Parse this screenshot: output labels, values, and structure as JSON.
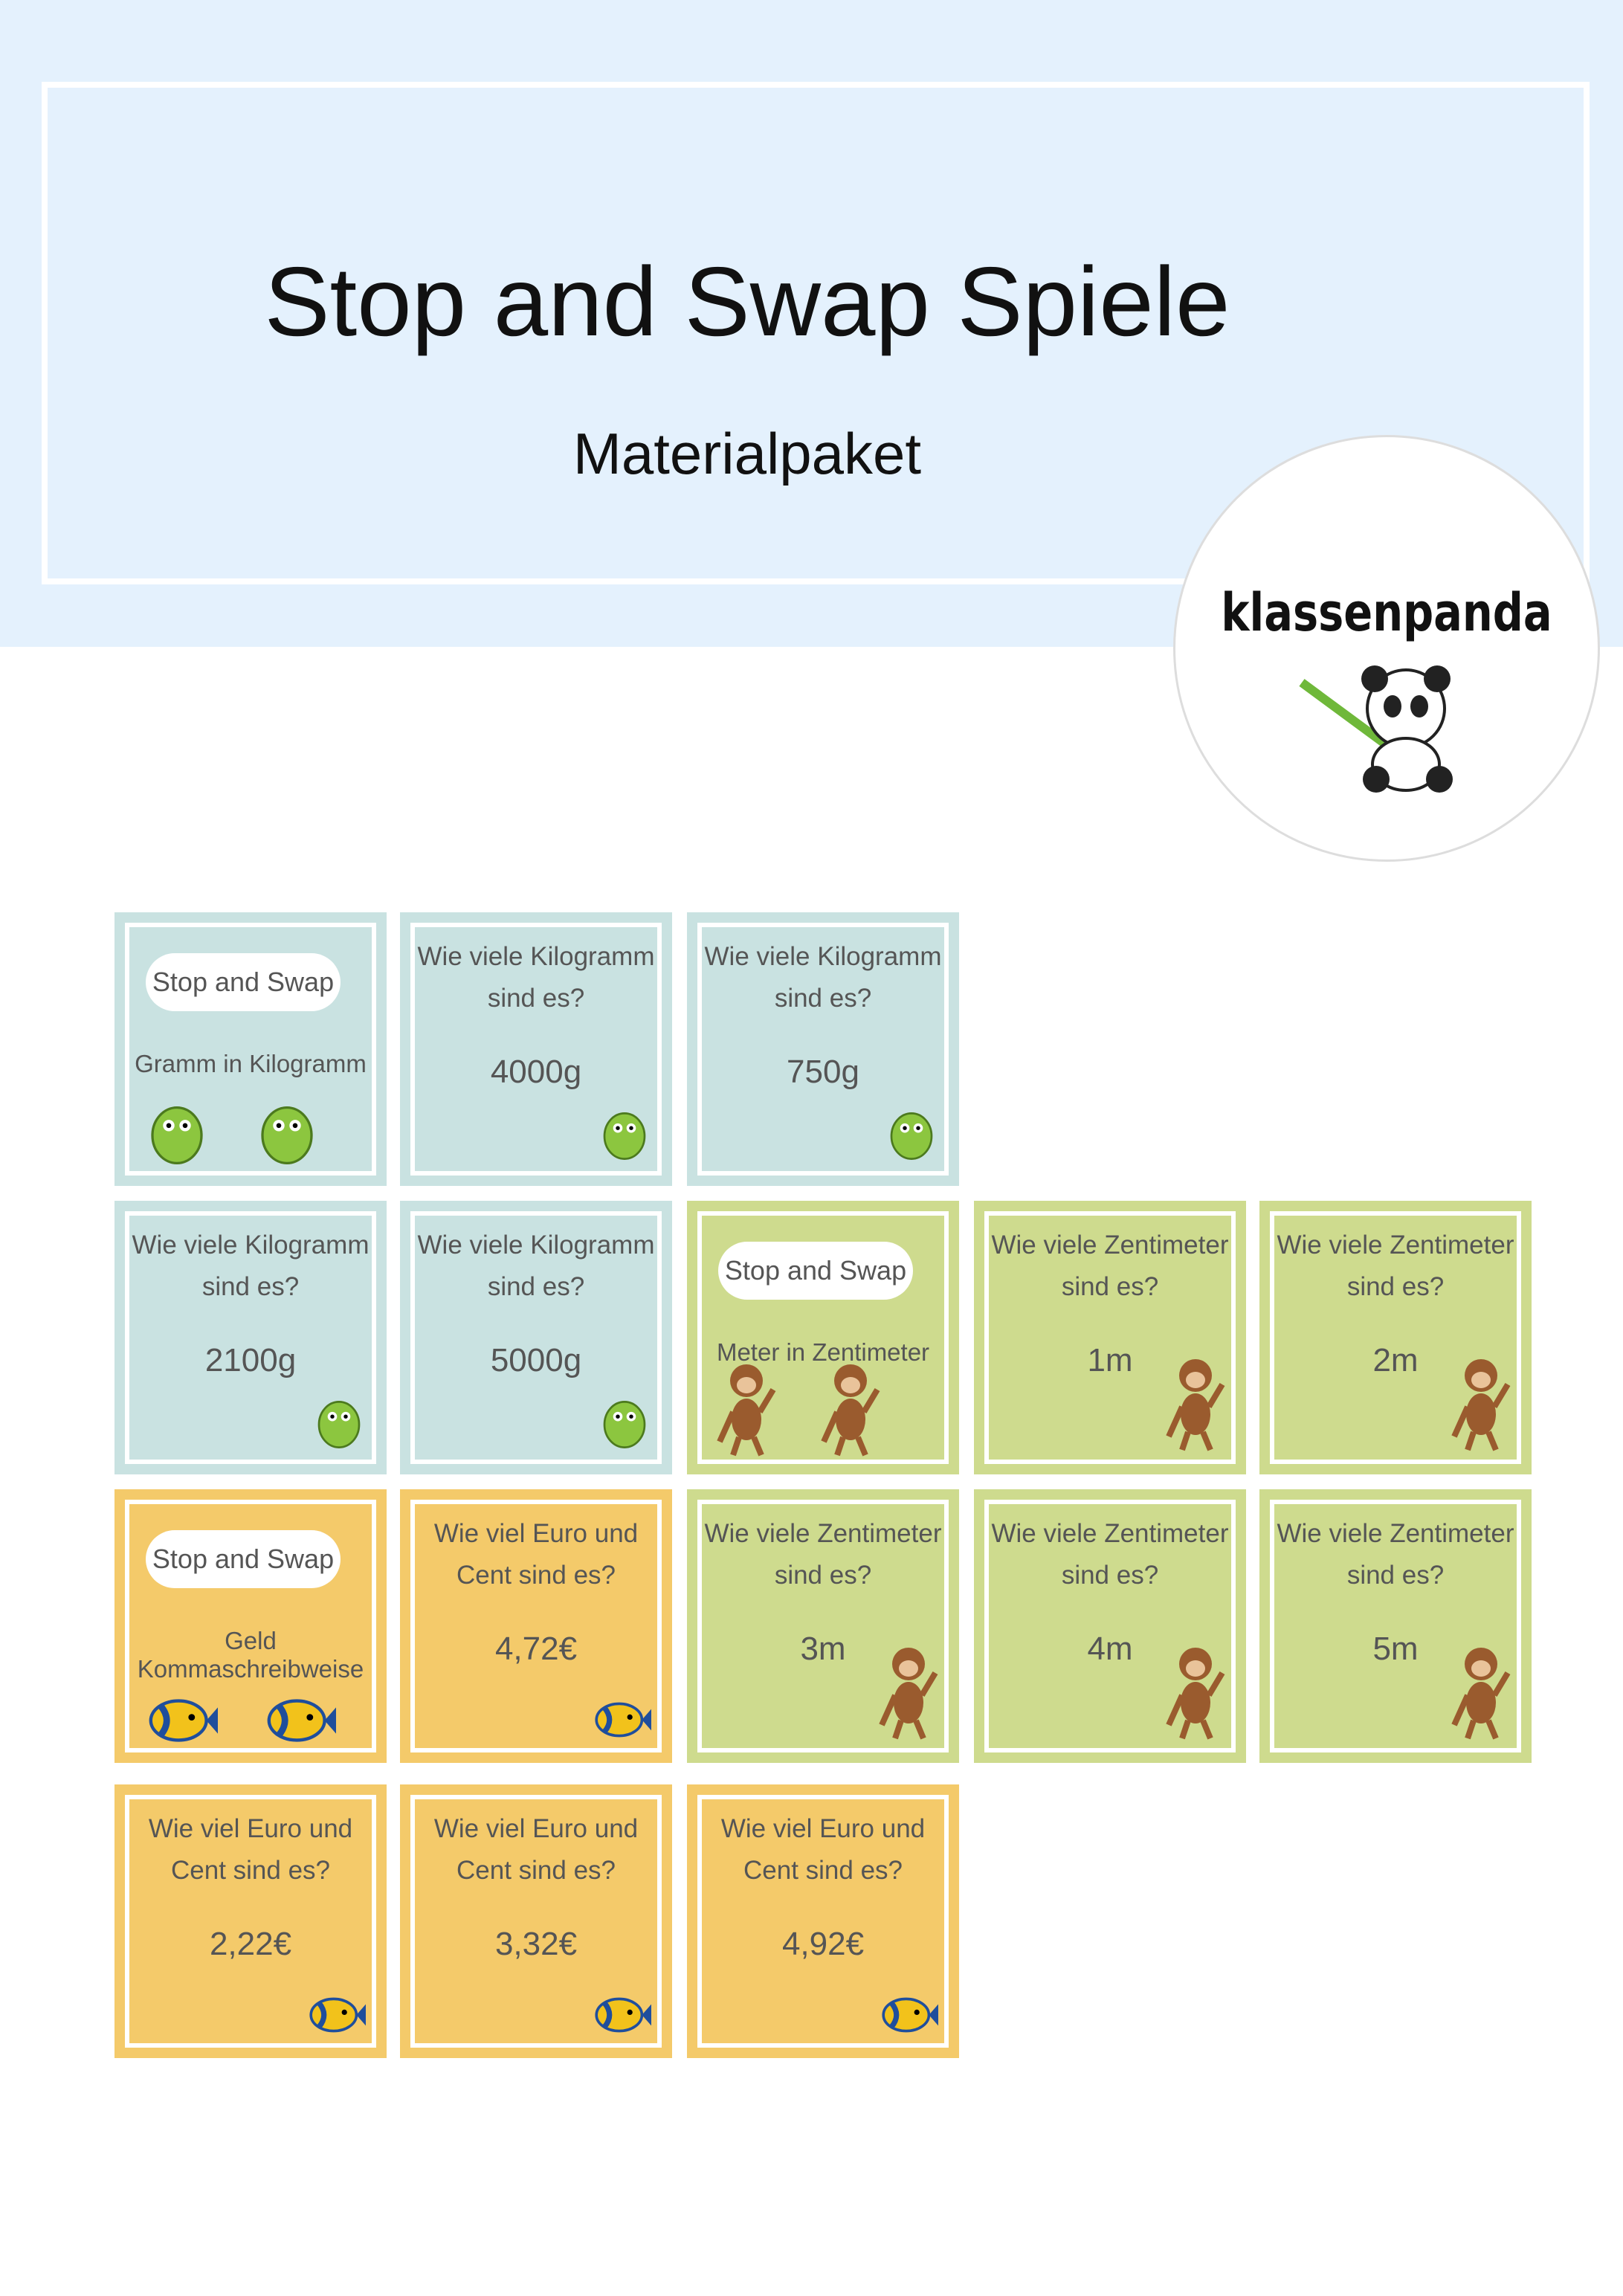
{
  "header": {
    "title": "Stop and Swap Spiele",
    "subtitle": "Materialpaket"
  },
  "logo": {
    "name": "klassenpanda"
  },
  "card_sets": [
    {
      "color": "#c9e2e1",
      "title_card": {
        "label": "Stop and Swap",
        "topic": "Gramm in Kilogramm"
      },
      "cards": [
        {
          "question": "Wie viele Kilogramm sind es?",
          "answer": "4000g"
        },
        {
          "question": "Wie viele Kilogramm sind es?",
          "answer": "750g"
        },
        {
          "question": "Wie viele Kilogramm sind es?",
          "answer": "2100g"
        },
        {
          "question": "Wie viele Kilogramm sind es?",
          "answer": "5000g"
        }
      ]
    },
    {
      "color": "#cedb8e",
      "title_card": {
        "label": "Stop and Swap",
        "topic": "Meter in Zentimeter"
      },
      "cards": [
        {
          "question": "Wie viele Zentimeter sind es?",
          "answer": "1m"
        },
        {
          "question": "Wie viele Zentimeter sind es?",
          "answer": "2m"
        },
        {
          "question": "Wie viele Zentimeter sind es?",
          "answer": "3m"
        },
        {
          "question": "Wie viele Zentimeter sind es?",
          "answer": "4m"
        },
        {
          "question": "Wie viele Zentimeter sind es?",
          "answer": "5m"
        }
      ]
    },
    {
      "color": "#f4ca6a",
      "title_card": {
        "label": "Stop and Swap",
        "topic": "Geld Kommaschreibweise"
      },
      "cards": [
        {
          "question": "Wie viel Euro und Cent sind es?",
          "answer": "4,72€"
        },
        {
          "question": "Wie viel Euro und Cent sind es?",
          "answer": "2,22€"
        },
        {
          "question": "Wie viel Euro und Cent sind es?",
          "answer": "3,32€"
        },
        {
          "question": "Wie viel Euro und Cent sind es?",
          "answer": "4,92€"
        }
      ]
    }
  ]
}
